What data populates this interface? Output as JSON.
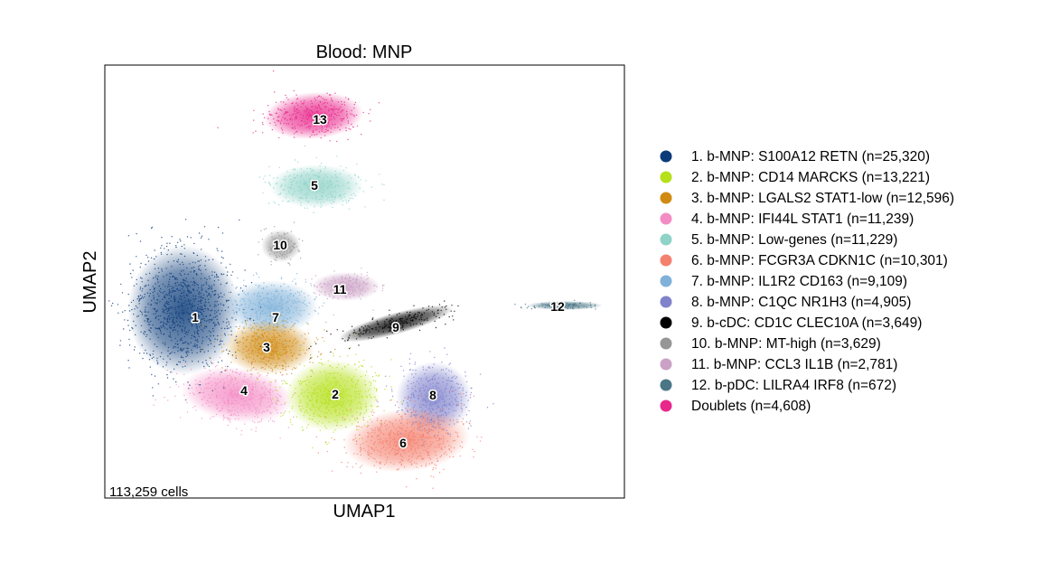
{
  "chart_data": {
    "type": "scatter",
    "title": "Blood: MNP",
    "xlabel": "UMAP1",
    "ylabel": "UMAP2",
    "annotation": "113,259 cells",
    "grid": false,
    "legend_placement": "right",
    "series": [
      {
        "name": "1. b-MNP: S100A12 RETN (n=25,320)",
        "label": "1",
        "color": "#0b3b78"
      },
      {
        "name": "2. b-MNP: CD14 MARCKS (n=13,221)",
        "label": "2",
        "color": "#b5e01a"
      },
      {
        "name": "3. b-MNP: LGALS2 STAT1-low (n=12,596)",
        "label": "3",
        "color": "#d08a12"
      },
      {
        "name": "4. b-MNP: IFI44L STAT1 (n=11,239)",
        "label": "4",
        "color": "#f48cc4"
      },
      {
        "name": "5. b-MNP: Low-genes (n=11,229)",
        "label": "5",
        "color": "#8fd3c8"
      },
      {
        "name": "6. b-MNP: FCGR3A CDKN1C (n=10,301)",
        "label": "6",
        "color": "#f4806e"
      },
      {
        "name": "7. b-MNP: IL1R2 CD163 (n=9,109)",
        "label": "7",
        "color": "#80b1d8"
      },
      {
        "name": "8. b-MNP: C1QC NR1H3 (n=4,905)",
        "label": "8",
        "color": "#8082cc"
      },
      {
        "name": "9. b-cDC: CD1C CLEC10A (n=3,649)",
        "label": "9",
        "color": "#000000"
      },
      {
        "name": "10. b-MNP: MT-high (n=3,629)",
        "label": "10",
        "color": "#969696"
      },
      {
        "name": "11. b-MNP: CCL3 IL1B (n=2,781)",
        "label": "11",
        "color": "#cba1c5"
      },
      {
        "name": "12. b-pDC: LILRA4 IRF8 (n=672)",
        "label": "12",
        "color": "#4a7686"
      },
      {
        "name": "Doublets (n=4,608)",
        "label": "13",
        "color": "#e8278b"
      }
    ]
  }
}
